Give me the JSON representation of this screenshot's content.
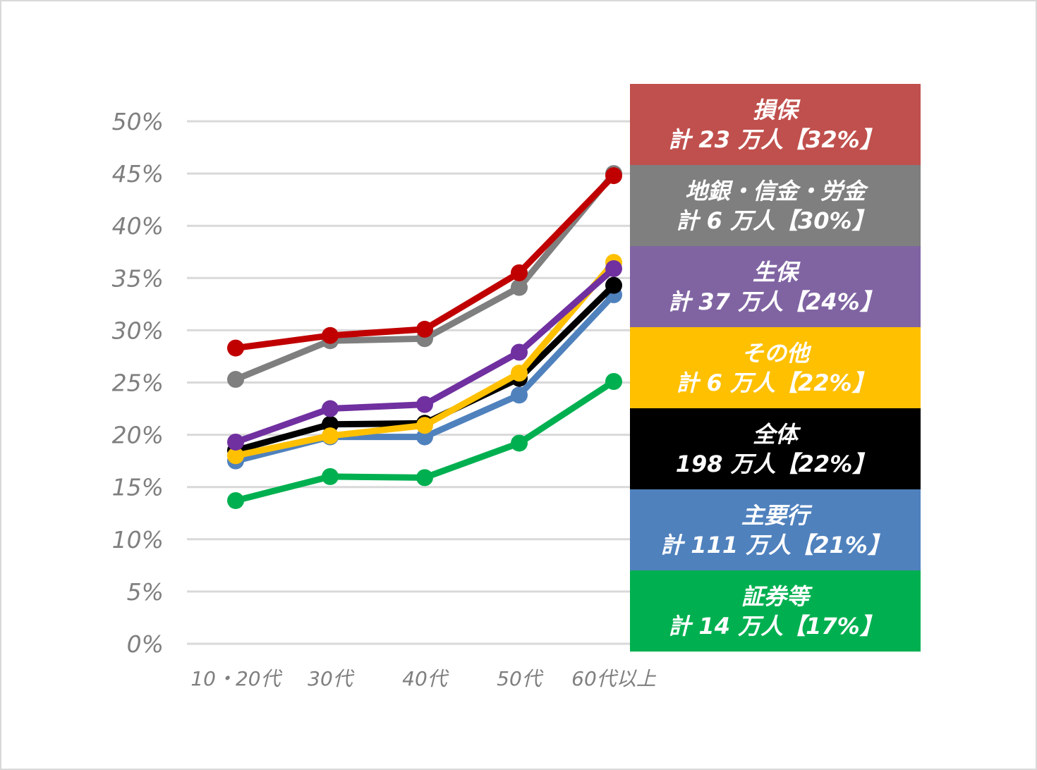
{
  "chart_data": {
    "type": "line",
    "categories": [
      "10・20代",
      "30代",
      "40代",
      "50代",
      "60代以上"
    ],
    "y_tick_labels": [
      "0%",
      "5%",
      "10%",
      "15%",
      "20%",
      "25%",
      "30%",
      "35%",
      "40%",
      "45%",
      "50%"
    ],
    "ylim": [
      0,
      50
    ],
    "grid": true,
    "legend_placement": "right",
    "series": [
      {
        "name": "損保",
        "detail": "計 23 万人【32%】",
        "color": "#c00000",
        "box_color": "#c0504d",
        "values": [
          28.3,
          29.5,
          30.1,
          35.5,
          44.8
        ]
      },
      {
        "name": "地銀・信金・労金",
        "detail": "計 6 万人【30%】",
        "color": "#7f7f7f",
        "box_color": "#7f7f7f",
        "values": [
          25.3,
          29.0,
          29.2,
          34.1,
          45.0
        ]
      },
      {
        "name": "生保",
        "detail": "計 37 万人【24%】",
        "color": "#7030a0",
        "box_color": "#8064a2",
        "values": [
          19.3,
          22.5,
          22.9,
          27.9,
          35.9
        ]
      },
      {
        "name": "その他",
        "detail": "計 6 万人【22%】",
        "color": "#ffc000",
        "box_color": "#ffc000",
        "values": [
          18.0,
          19.9,
          20.9,
          25.9,
          36.5
        ]
      },
      {
        "name": "全体",
        "detail": "198 万人【22%】",
        "color": "#000000",
        "box_color": "#000000",
        "values": [
          18.5,
          21.0,
          21.1,
          25.4,
          34.3
        ]
      },
      {
        "name": "主要行",
        "detail": "計 111 万人【21%】",
        "color": "#4f81bd",
        "box_color": "#4f81bd",
        "values": [
          17.5,
          19.8,
          19.8,
          23.8,
          33.4
        ]
      },
      {
        "name": "証券等",
        "detail": "計 14 万人【17%】",
        "color": "#00b050",
        "box_color": "#00b050",
        "values": [
          13.7,
          16.0,
          15.9,
          19.2,
          25.1
        ]
      }
    ]
  }
}
